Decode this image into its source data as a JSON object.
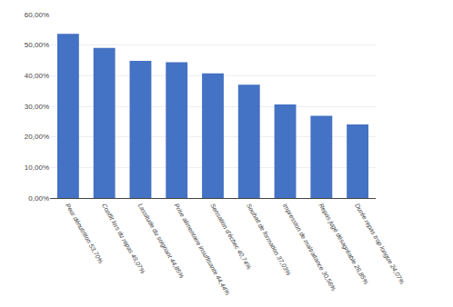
{
  "chart_data": {
    "type": "bar",
    "categories": [
      "Peur dénutrition 53,70%",
      "Conflit lors du repas 49,07%",
      "Lassitude du soignant 44,85%",
      "Prise alimentaire insuffisante 44,44%",
      "Sensation d'échec 40,74%",
      "Souhait de formation 37,03%",
      "Impression de maltraitance 30,56%",
      "Repas jugé désagréable 26,85%",
      "Durée repas trop longue 24,07%"
    ],
    "values": [
      53.7,
      49.07,
      44.85,
      44.44,
      40.74,
      37.03,
      30.56,
      26.85,
      24.07
    ],
    "color": "#4472C4",
    "ylim": [
      0,
      60
    ],
    "yticks": [
      {
        "value": 0,
        "label": "0,00%"
      },
      {
        "value": 10,
        "label": "10,00%"
      },
      {
        "value": 20,
        "label": "20,00%"
      },
      {
        "value": 30,
        "label": "30,00%"
      },
      {
        "value": 40,
        "label": "40,00%"
      },
      {
        "value": 50,
        "label": "50,00%"
      },
      {
        "value": 60,
        "label": "60,00%"
      }
    ],
    "grid": true
  }
}
